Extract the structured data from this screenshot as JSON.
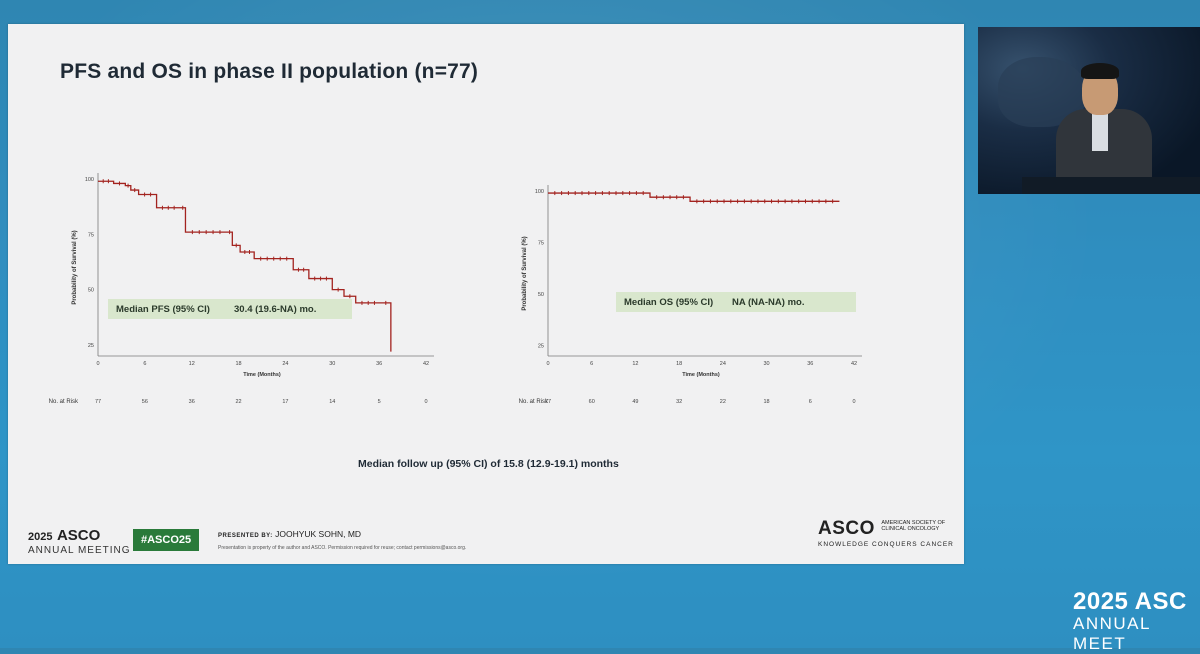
{
  "slide": {
    "title": "PFS and OS in phase II population (n=77)",
    "footnote": "Median follow up (95% CI) of 15.8 (12.9-19.1) months",
    "footer": {
      "year": "2025",
      "brand": "ASCO",
      "meeting": "ANNUAL MEETING",
      "hashtag": "#ASCO25",
      "presented_label": "PRESENTED BY:",
      "presenter": "JOOHYUK SOHN, MD",
      "disclaimer": "Presentation is property of the author and ASCO. Permission required for reuse; contact permissions@asco.org.",
      "org": "ASCO",
      "org_full_1": "AMERICAN SOCIETY OF",
      "org_full_2": "CLINICAL ONCOLOGY",
      "tagline": "KNOWLEDGE CONQUERS CANCER"
    }
  },
  "screen_logo": {
    "line1": "2025 ASC",
    "line2": "ANNUAL MEET"
  },
  "colors": {
    "curve": "#a3231f",
    "median_box": "#d9e7cd",
    "hashtag_bg": "#2a7a3a"
  },
  "chart_data": [
    {
      "type": "line",
      "step": true,
      "ylabel": "Probability of Survival (%)",
      "xlabel": "Time (Months)",
      "xticks": [
        0,
        6,
        12,
        18,
        24,
        30,
        36,
        42
      ],
      "yticks": [
        25,
        50,
        75,
        100
      ],
      "xlim": [
        0,
        42
      ],
      "ylim": [
        20,
        100
      ],
      "median_label": "Median PFS (95% CI)",
      "median_value": "30.4 (19.6-NA) mo.",
      "risk_label": "No. at Risk",
      "risk_values": [
        "77",
        "56",
        "36",
        "22",
        "17",
        "14",
        "5",
        "0"
      ],
      "series": [
        {
          "x": [
            0,
            2,
            3.5,
            4.2,
            5.2,
            7.5,
            10.5,
            11.2,
            16.5,
            17.2,
            18.2,
            20,
            25,
            27,
            30,
            31.5,
            33,
            36.2,
            37.5
          ],
          "y": [
            99,
            98,
            97,
            95,
            93,
            87,
            87,
            76,
            76,
            70,
            67,
            64,
            59,
            55,
            50,
            47,
            44,
            44,
            22
          ]
        }
      ]
    },
    {
      "type": "line",
      "step": true,
      "ylabel": "Probability of Survival (%)",
      "xlabel": "Time (Months)",
      "xticks": [
        0,
        6,
        12,
        18,
        24,
        30,
        36,
        42
      ],
      "yticks": [
        25,
        50,
        75,
        100
      ],
      "xlim": [
        0,
        42
      ],
      "ylim": [
        20,
        100
      ],
      "median_label": "Median OS (95% CI)",
      "median_value": "NA (NA-NA) mo.",
      "risk_label": "No. at Risk",
      "risk_values": [
        "77",
        "60",
        "49",
        "32",
        "22",
        "18",
        "6",
        "0"
      ],
      "series": [
        {
          "x": [
            0,
            14,
            19.5,
            40
          ],
          "y": [
            99,
            97,
            95,
            95
          ]
        }
      ]
    }
  ]
}
